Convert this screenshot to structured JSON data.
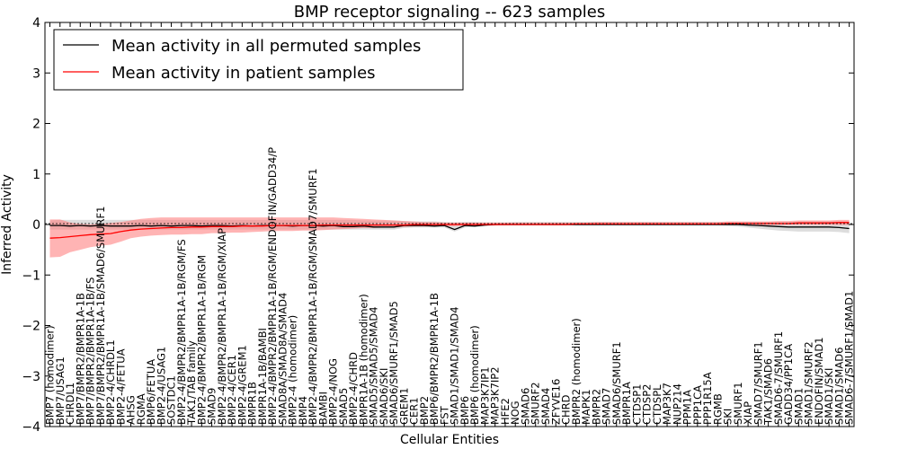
{
  "chart_data": {
    "type": "line",
    "title": "BMP receptor signaling -- 623 samples",
    "xlabel": "Cellular Entities",
    "ylabel": "Inferred Activity",
    "ylim": [
      -4,
      4
    ],
    "yticks": [
      -4,
      -3,
      -2,
      -1,
      0,
      1,
      2,
      3,
      4
    ],
    "ytick_labels": [
      "−4",
      "−3",
      "−2",
      "−1",
      "0",
      "1",
      "2",
      "3",
      "4"
    ],
    "grid": false,
    "legend_position": "top-left",
    "categories": [
      "BMP7 (homodimer)",
      "BMP7/USAG1",
      "CHRDL1",
      "BMP7/BMPR2/BMPR1A-1B",
      "BMP7/BMPR2/BMPR1A-1B/FS",
      "BMP7/BMPR2/BMPR1A-1B/SMAD6/SMURF1",
      "BMP2-4/CHRDL1",
      "BMP2-4/FETUA",
      "AHSG",
      "RGMA",
      "BMP6/FETUA",
      "BMP2-4/USAG1",
      "SOSTDC1",
      "BMP2-4/BMPR2/BMPR1A-1B/RGM/FS",
      "TAK1/TAB family",
      "BMP2-4/BMPR2/BMPR1A-1B/RGM",
      "SMAD9",
      "BMP2-4/BMPR2/BMPR1A-1B/RGM/XIAP",
      "BMP2-4/CER1",
      "BMP2-4/GREM1",
      "BMPR1B",
      "BMPR1A-1B/BAMBI",
      "BMP2-4/BMPR2/BMPR1A-1B/RGM/ENDOFIN/GADD34/P",
      "SMAD8A/SMAD8A/SMAD4",
      "BMP2-4 (homodimer)",
      "BMP4",
      "BMP2-4/BMPR2/BMPR1A-1B/RGM/SMAD7/SMURF1",
      "BAMBI",
      "BMP2-4/NOG",
      "SMAD5",
      "BMP2-4/CHRD",
      "BMPR1A-1B (homodimer)",
      "SMAD5/SMAD5/SMAD4",
      "SMAD6/SKI",
      "SMAD6/SMURF1/SMAD5",
      "GREM1",
      "CER1",
      "BMP2",
      "BMP6/BMPR2/BMPR1A-1B",
      "FST",
      "SMAD1/SMAD1/SMAD4",
      "BMP6",
      "BMP6 (homodimer)",
      "MAP3K7IP1",
      "MAP3K7IP2",
      "HFE2",
      "NOG",
      "SMAD6",
      "SMURF2",
      "SMAD4",
      "ZFYVE16",
      "CHRD",
      "BMPR2 (homodimer)",
      "MAPK1",
      "BMPR2",
      "SMAD7",
      "SMAD6/SMURF1",
      "BMPR1A",
      "CTDSP1",
      "CTDSP2",
      "CTDSPL",
      "MAP3K7",
      "NUP214",
      "PPM1A",
      "PPP1CA",
      "PPP1R15A",
      "RGMB",
      "SKI",
      "SMURF1",
      "XIAP",
      "SMAD7/SMURF1",
      "TAK1/SMAD6",
      "SMAD6-7/SMURF1",
      "GADD34/PP1CA",
      "SMAD1",
      "SMAD1/SMURF2",
      "ENDOFIN/SMAD1",
      "SMAD1/SKI",
      "SMAD1/SMAD6",
      "SMAD6-7/SMURF1/SMAD1"
    ],
    "series": [
      {
        "name": "Mean activity in all permuted samples",
        "color": "#000000",
        "values": [
          -0.02,
          -0.02,
          -0.03,
          -0.02,
          -0.03,
          -0.02,
          -0.03,
          -0.03,
          -0.03,
          -0.02,
          -0.03,
          -0.02,
          -0.03,
          -0.02,
          -0.02,
          -0.03,
          -0.02,
          -0.02,
          -0.03,
          -0.02,
          -0.03,
          -0.02,
          -0.02,
          -0.02,
          -0.03,
          -0.02,
          -0.02,
          -0.03,
          -0.02,
          -0.04,
          -0.04,
          -0.03,
          -0.05,
          -0.05,
          -0.05,
          -0.02,
          -0.02,
          -0.02,
          -0.03,
          -0.02,
          -0.1,
          -0.02,
          -0.03,
          -0.01,
          0.0,
          0.0,
          0.0,
          0.0,
          0.0,
          0.0,
          0.0,
          0.0,
          0.0,
          0.0,
          0.0,
          0.0,
          0.0,
          0.0,
          0.0,
          0.0,
          0.0,
          0.0,
          0.0,
          0.0,
          0.0,
          0.0,
          0.0,
          0.0,
          0.0,
          -0.01,
          -0.02,
          -0.03,
          -0.04,
          -0.05,
          -0.05,
          -0.05,
          -0.05,
          -0.05,
          -0.06,
          -0.08
        ]
      },
      {
        "name": "Mean activity in patient samples",
        "color": "#ff0000",
        "values": [
          -0.27,
          -0.26,
          -0.24,
          -0.22,
          -0.2,
          -0.19,
          -0.18,
          -0.14,
          -0.11,
          -0.09,
          -0.08,
          -0.07,
          -0.06,
          -0.06,
          -0.05,
          -0.05,
          -0.04,
          -0.04,
          -0.04,
          -0.03,
          -0.03,
          -0.03,
          -0.02,
          -0.02,
          -0.02,
          -0.02,
          -0.02,
          -0.01,
          -0.01,
          -0.01,
          -0.01,
          -0.01,
          -0.01,
          -0.01,
          -0.01,
          -0.01,
          0.0,
          0.0,
          0.0,
          0.0,
          0.0,
          0.0,
          0.0,
          0.0,
          0.0,
          0.0,
          0.0,
          0.0,
          0.0,
          0.0,
          0.0,
          0.0,
          0.01,
          0.01,
          0.01,
          0.01,
          0.01,
          0.01,
          0.01,
          0.01,
          0.01,
          0.01,
          0.01,
          0.01,
          0.01,
          0.01,
          0.01,
          0.02,
          0.02,
          0.02,
          0.02,
          0.02,
          0.02,
          0.02,
          0.03,
          0.03,
          0.03,
          0.03,
          0.04,
          0.04
        ]
      }
    ],
    "bands": [
      {
        "name": "permuted spread",
        "color": "#bbbbbb",
        "lower": [
          -0.1,
          -0.1,
          -0.1,
          -0.1,
          -0.1,
          -0.1,
          -0.1,
          -0.1,
          -0.1,
          -0.1,
          -0.1,
          -0.1,
          -0.1,
          -0.1,
          -0.1,
          -0.1,
          -0.1,
          -0.1,
          -0.1,
          -0.1,
          -0.1,
          -0.1,
          -0.1,
          -0.1,
          -0.1,
          -0.1,
          -0.1,
          -0.1,
          -0.1,
          -0.1,
          -0.1,
          -0.1,
          -0.1,
          -0.1,
          -0.1,
          -0.07,
          -0.06,
          -0.06,
          -0.06,
          -0.06,
          -0.14,
          -0.06,
          -0.05,
          -0.03,
          -0.02,
          -0.02,
          -0.02,
          -0.02,
          -0.02,
          -0.02,
          -0.02,
          -0.02,
          -0.02,
          -0.02,
          -0.02,
          -0.02,
          -0.02,
          -0.02,
          -0.02,
          -0.02,
          -0.02,
          -0.02,
          -0.02,
          -0.02,
          -0.02,
          -0.02,
          -0.02,
          -0.03,
          -0.04,
          -0.06,
          -0.08,
          -0.1,
          -0.12,
          -0.13,
          -0.14,
          -0.14,
          -0.14,
          -0.14,
          -0.15,
          -0.17
        ],
        "upper": [
          0.08,
          0.09,
          0.09,
          0.09,
          0.09,
          0.09,
          0.09,
          0.09,
          0.09,
          0.09,
          0.09,
          0.09,
          0.09,
          0.09,
          0.09,
          0.09,
          0.09,
          0.09,
          0.09,
          0.09,
          0.09,
          0.09,
          0.09,
          0.09,
          0.09,
          0.09,
          0.09,
          0.09,
          0.09,
          0.09,
          0.09,
          0.08,
          0.08,
          0.08,
          0.08,
          0.07,
          0.06,
          0.06,
          0.06,
          0.05,
          0.04,
          0.05,
          0.05,
          0.04,
          0.04,
          0.04,
          0.05,
          0.05,
          0.05,
          0.05,
          0.05,
          0.05,
          0.05,
          0.05,
          0.05,
          0.05,
          0.05,
          0.05,
          0.05,
          0.05,
          0.05,
          0.05,
          0.05,
          0.05,
          0.05,
          0.05,
          0.05,
          0.05,
          0.05,
          0.05,
          0.05,
          0.05,
          0.05,
          0.05,
          0.06,
          0.06,
          0.06,
          0.06,
          0.06,
          0.06
        ]
      },
      {
        "name": "patient spread",
        "color": "#ff7777",
        "lower": [
          -0.65,
          -0.64,
          -0.55,
          -0.5,
          -0.45,
          -0.42,
          -0.4,
          -0.34,
          -0.27,
          -0.24,
          -0.22,
          -0.21,
          -0.2,
          -0.2,
          -0.19,
          -0.19,
          -0.17,
          -0.17,
          -0.16,
          -0.16,
          -0.15,
          -0.14,
          -0.13,
          -0.13,
          -0.13,
          -0.12,
          -0.12,
          -0.11,
          -0.1,
          -0.09,
          -0.08,
          -0.07,
          -0.07,
          -0.06,
          -0.06,
          -0.05,
          -0.04,
          -0.04,
          -0.04,
          -0.03,
          -0.03,
          -0.02,
          -0.02,
          -0.02,
          -0.02,
          -0.01,
          -0.01,
          -0.01,
          -0.01,
          -0.01,
          -0.01,
          -0.01,
          -0.01,
          -0.01,
          -0.01,
          -0.01,
          -0.01,
          -0.01,
          -0.01,
          -0.01,
          -0.01,
          -0.01,
          -0.01,
          -0.01,
          -0.01,
          -0.01,
          -0.01,
          -0.01,
          -0.01,
          -0.01,
          -0.01,
          -0.01,
          -0.01,
          -0.01,
          -0.01,
          -0.01,
          -0.01,
          -0.01,
          -0.01,
          -0.01
        ],
        "upper": [
          0.1,
          0.1,
          0.04,
          0.01,
          0.0,
          0.01,
          0.03,
          0.05,
          0.08,
          0.11,
          0.13,
          0.14,
          0.14,
          0.14,
          0.14,
          0.14,
          0.14,
          0.14,
          0.14,
          0.14,
          0.14,
          0.14,
          0.14,
          0.14,
          0.14,
          0.14,
          0.14,
          0.14,
          0.14,
          0.13,
          0.12,
          0.11,
          0.1,
          0.09,
          0.08,
          0.07,
          0.06,
          0.05,
          0.05,
          0.04,
          0.04,
          0.04,
          0.04,
          0.04,
          0.04,
          0.04,
          0.04,
          0.04,
          0.04,
          0.04,
          0.04,
          0.04,
          0.04,
          0.04,
          0.05,
          0.05,
          0.05,
          0.05,
          0.05,
          0.05,
          0.05,
          0.05,
          0.05,
          0.05,
          0.05,
          0.05,
          0.05,
          0.06,
          0.06,
          0.06,
          0.06,
          0.06,
          0.07,
          0.07,
          0.08,
          0.08,
          0.08,
          0.08,
          0.09,
          0.09
        ]
      }
    ]
  }
}
